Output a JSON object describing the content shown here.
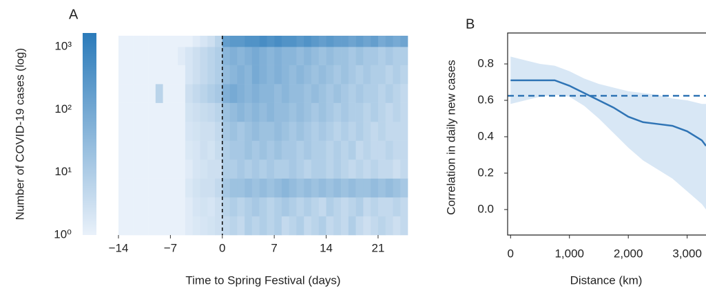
{
  "chart_data": [
    {
      "type": "heatmap",
      "panel": "A",
      "xlabel": "Time to Spring Festival (days)",
      "ylabel": "Number of COVID-19 cases (log)",
      "x": [
        -14,
        -13,
        -12,
        -11,
        -10,
        -9,
        -8,
        -7,
        -6,
        -5,
        -4,
        -3,
        -2,
        -1,
        0,
        1,
        2,
        3,
        4,
        5,
        6,
        7,
        8,
        9,
        10,
        11,
        12,
        13,
        14,
        15,
        16,
        17,
        18,
        19,
        20,
        21,
        22,
        23,
        24
      ],
      "xlim": [
        -14,
        25
      ],
      "xticks": [
        {
          "value": -14,
          "label": "−14"
        },
        {
          "value": -7,
          "label": "−7"
        },
        0,
        7,
        14,
        21
      ],
      "y_bins": [
        1,
        2,
        4,
        8,
        16,
        32,
        64,
        128,
        256,
        512,
        1000,
        1500
      ],
      "ylim": [
        1,
        1500
      ],
      "ylog": true,
      "yticks": [
        {
          "value": 1,
          "label": "10⁰"
        },
        {
          "value": 10,
          "label": "10¹"
        },
        {
          "value": 100,
          "label": "10²"
        },
        {
          "value": 1000,
          "label": "10³"
        }
      ],
      "vline": 0,
      "color_low": "#e9f1fa",
      "color_high": "#2b7bba",
      "z": [
        [
          0,
          0,
          0,
          0,
          0,
          0,
          0,
          0,
          0,
          0.05,
          0.08,
          0.1,
          0.12,
          0.15,
          0.2,
          0.25,
          0.2,
          0.3,
          0.25,
          0.3,
          0.25,
          0.3,
          0.2,
          0.25,
          0.3,
          0.2,
          0.25,
          0.3,
          0.2,
          0.25,
          0.2,
          0.3,
          0.2,
          0.15,
          0.2,
          0.25,
          0.2,
          0.15,
          0.2
        ],
        [
          0,
          0,
          0,
          0,
          0,
          0,
          0,
          0,
          0,
          0.05,
          0.1,
          0.12,
          0.1,
          0.15,
          0.25,
          0.3,
          0.25,
          0.3,
          0.35,
          0.3,
          0.25,
          0.3,
          0.35,
          0.3,
          0.25,
          0.3,
          0.25,
          0.2,
          0.3,
          0.25,
          0.2,
          0.25,
          0.3,
          0.2,
          0.25,
          0.2,
          0.2,
          0.25,
          0.2
        ],
        [
          0,
          0,
          0,
          0,
          0,
          0,
          0,
          0,
          0,
          0.08,
          0.12,
          0.15,
          0.15,
          0.2,
          0.35,
          0.4,
          0.4,
          0.45,
          0.4,
          0.45,
          0.4,
          0.45,
          0.5,
          0.45,
          0.4,
          0.45,
          0.4,
          0.45,
          0.4,
          0.45,
          0.4,
          0.45,
          0.4,
          0.4,
          0.45,
          0.4,
          0.45,
          0.4,
          0.35
        ],
        [
          0,
          0,
          0,
          0,
          0,
          0,
          0,
          0,
          0,
          0.05,
          0.1,
          0.12,
          0.15,
          0.15,
          0.3,
          0.3,
          0.35,
          0.3,
          0.35,
          0.3,
          0.35,
          0.3,
          0.3,
          0.35,
          0.3,
          0.25,
          0.3,
          0.3,
          0.25,
          0.3,
          0.25,
          0.2,
          0.25,
          0.2,
          0.25,
          0.2,
          0.2,
          0.15,
          0.2
        ],
        [
          0,
          0,
          0,
          0,
          0,
          0,
          0,
          0,
          0,
          0.08,
          0.1,
          0.15,
          0.12,
          0.18,
          0.3,
          0.35,
          0.35,
          0.4,
          0.35,
          0.4,
          0.35,
          0.4,
          0.35,
          0.35,
          0.3,
          0.35,
          0.3,
          0.3,
          0.25,
          0.3,
          0.25,
          0.3,
          0.2,
          0.25,
          0.2,
          0.2,
          0.25,
          0.2,
          0.2
        ],
        [
          0,
          0,
          0,
          0,
          0,
          0,
          0,
          0,
          0,
          0.1,
          0.12,
          0.15,
          0.15,
          0.2,
          0.35,
          0.4,
          0.35,
          0.4,
          0.45,
          0.4,
          0.4,
          0.45,
          0.4,
          0.35,
          0.4,
          0.35,
          0.3,
          0.35,
          0.3,
          0.25,
          0.3,
          0.25,
          0.3,
          0.25,
          0.2,
          0.25,
          0.2,
          0.2,
          0.2
        ],
        [
          0,
          0,
          0,
          0,
          0,
          0,
          0,
          0,
          0,
          0.12,
          0.15,
          0.18,
          0.2,
          0.25,
          0.4,
          0.45,
          0.5,
          0.45,
          0.5,
          0.45,
          0.5,
          0.45,
          0.45,
          0.4,
          0.45,
          0.4,
          0.35,
          0.4,
          0.35,
          0.3,
          0.35,
          0.3,
          0.3,
          0.25,
          0.3,
          0.25,
          0.2,
          0.25,
          0.2
        ],
        [
          0,
          0,
          0,
          0,
          0,
          0.25,
          0,
          0,
          0,
          0.15,
          0.2,
          0.25,
          0.3,
          0.35,
          0.55,
          0.6,
          0.55,
          0.5,
          0.55,
          0.5,
          0.5,
          0.45,
          0.5,
          0.45,
          0.45,
          0.4,
          0.45,
          0.4,
          0.35,
          0.4,
          0.35,
          0.3,
          0.35,
          0.3,
          0.3,
          0.25,
          0.3,
          0.25,
          0.2
        ],
        [
          0,
          0,
          0,
          0,
          0,
          0,
          0,
          0,
          0,
          0.1,
          0.15,
          0.2,
          0.25,
          0.3,
          0.45,
          0.5,
          0.55,
          0.5,
          0.6,
          0.55,
          0.5,
          0.55,
          0.5,
          0.45,
          0.5,
          0.45,
          0.4,
          0.45,
          0.4,
          0.35,
          0.4,
          0.35,
          0.3,
          0.35,
          0.3,
          0.3,
          0.25,
          0.3,
          0.25
        ],
        [
          0,
          0,
          0,
          0,
          0,
          0,
          0,
          0,
          0.05,
          0.1,
          0.15,
          0.2,
          0.25,
          0.3,
          0.5,
          0.55,
          0.5,
          0.55,
          0.6,
          0.55,
          0.5,
          0.55,
          0.5,
          0.5,
          0.45,
          0.5,
          0.45,
          0.4,
          0.45,
          0.4,
          0.4,
          0.35,
          0.4,
          0.35,
          0.35,
          0.3,
          0.35,
          0.3,
          0.3
        ],
        [
          0,
          0,
          0,
          0,
          0,
          0,
          0,
          0,
          0,
          0,
          0.05,
          0.1,
          0.15,
          0.25,
          0.7,
          0.75,
          0.75,
          0.8,
          0.8,
          0.85,
          0.8,
          0.85,
          0.8,
          0.8,
          0.75,
          0.8,
          0.75,
          0.7,
          0.75,
          0.7,
          0.7,
          0.65,
          0.7,
          0.65,
          0.7,
          0.6,
          0.65,
          0.6,
          0.65
        ]
      ]
    },
    {
      "type": "line",
      "panel": "B",
      "xlabel": "Distance (km)",
      "ylabel": "Correlation in daily new cases",
      "x": [
        0,
        250,
        500,
        750,
        1000,
        1250,
        1500,
        1750,
        2000,
        2250,
        2500,
        2750,
        3000,
        3250,
        3320
      ],
      "xlim": [
        -50,
        3320
      ],
      "xticks": [
        0,
        {
          "value": 1000,
          "label": "1,000"
        },
        {
          "value": 2000,
          "label": "2,000"
        },
        {
          "value": 3000,
          "label": "3,000"
        }
      ],
      "ylim": [
        -0.14,
        0.97
      ],
      "yticks": [
        {
          "value": 0,
          "label": "0.0"
        },
        0.2,
        0.4,
        0.6,
        0.8
      ],
      "line": {
        "color": "#2f74b5",
        "values": [
          0.71,
          0.71,
          0.71,
          0.71,
          0.68,
          0.64,
          0.6,
          0.56,
          0.51,
          0.48,
          0.47,
          0.46,
          0.43,
          0.38,
          0.35
        ]
      },
      "band": {
        "color": "#d8e7f5",
        "lower": [
          0.58,
          0.6,
          0.62,
          0.63,
          0.62,
          0.57,
          0.5,
          0.42,
          0.34,
          0.27,
          0.22,
          0.17,
          0.1,
          0.03,
          0.0
        ],
        "upper": [
          0.84,
          0.82,
          0.8,
          0.79,
          0.76,
          0.72,
          0.69,
          0.67,
          0.65,
          0.64,
          0.63,
          0.61,
          0.6,
          0.58,
          0.58
        ]
      },
      "hline": {
        "value": 0.625,
        "color": "#2f74b5",
        "dashed": true
      }
    }
  ]
}
